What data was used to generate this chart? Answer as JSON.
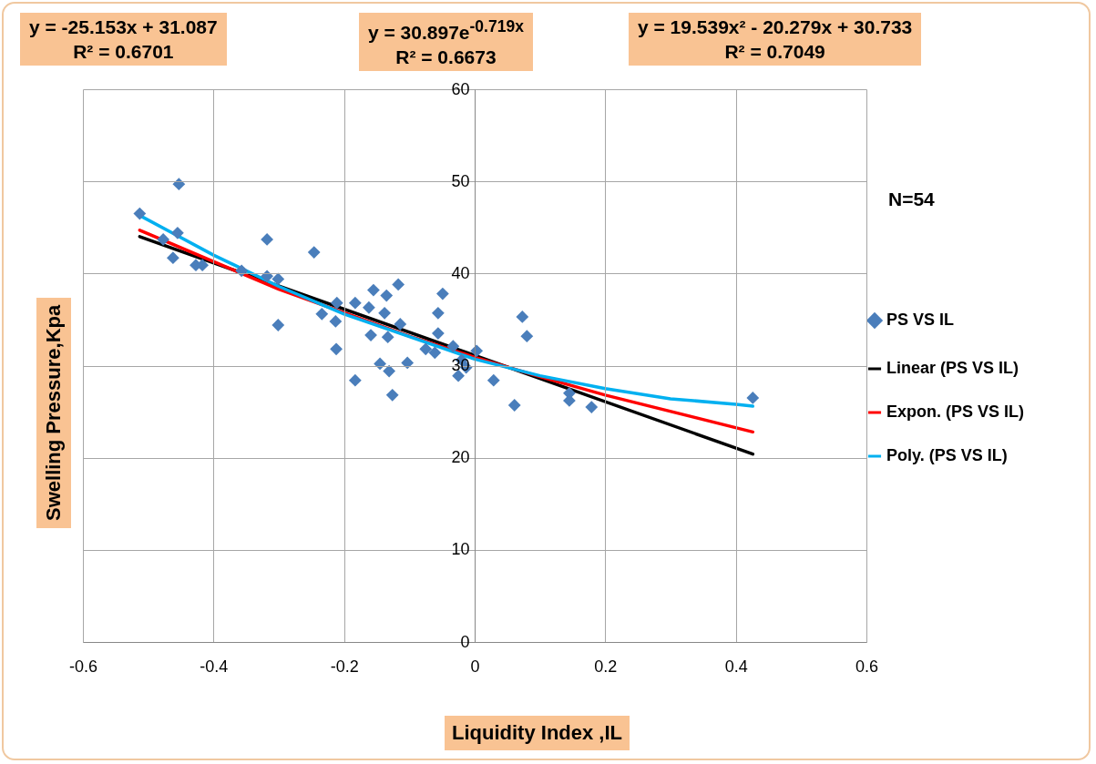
{
  "chart_data": {
    "type": "scatter",
    "xlabel": "Liquidity Index ,IL",
    "ylabel": "Swelling  Pressure,Kpa",
    "annotations": [
      "y = -25.153x + 31.087\nR² = 0.6701",
      "y = 30.897e$^{-0.719x}$\nR² = 0.6673",
      "y = 19.539x² - 20.279x + 30.733\nR² = 0.7049",
      "N=54"
    ],
    "xlim": [
      -0.6,
      0.6
    ],
    "xticks": [
      -0.6,
      -0.4,
      -0.2,
      0,
      0.2,
      0.4,
      0.6
    ],
    "ylim": [
      0,
      60
    ],
    "yticks": [
      0,
      10,
      20,
      30,
      40,
      50,
      60
    ],
    "grid": true,
    "legend": "right",
    "series": [
      {
        "name": "PS VS IL",
        "marker": "diamond",
        "color": "#4a7ebb",
        "x": [
          -0.513,
          -0.453,
          -0.455,
          -0.477,
          -0.462,
          -0.427,
          -0.417,
          -0.357,
          -0.318,
          -0.318,
          -0.301,
          -0.301,
          -0.246,
          -0.234,
          -0.211,
          -0.213,
          -0.183,
          -0.212,
          -0.155,
          -0.135,
          -0.117,
          -0.162,
          -0.138,
          -0.159,
          -0.133,
          -0.114,
          -0.145,
          -0.131,
          -0.183,
          -0.126,
          -0.103,
          -0.049,
          -0.056,
          -0.056,
          -0.075,
          -0.061,
          -0.033,
          -0.02,
          -0.013,
          -0.025,
          0.003,
          0.029,
          0.061,
          0.073,
          0.08,
          0.145,
          0.145,
          0.179,
          0.426
        ],
        "values": [
          46.5,
          49.7,
          44.4,
          43.7,
          41.7,
          40.9,
          40.9,
          40.3,
          43.7,
          39.7,
          39.4,
          34.4,
          42.3,
          35.6,
          36.8,
          34.8,
          36.8,
          31.8,
          38.2,
          37.6,
          38.8,
          36.3,
          35.7,
          33.3,
          33.1,
          34.5,
          30.2,
          29.4,
          28.4,
          26.8,
          30.3,
          37.8,
          35.7,
          33.5,
          31.8,
          31.4,
          32.1,
          30.6,
          29.8,
          28.9,
          31.6,
          28.4,
          25.7,
          35.3,
          33.2,
          27.0,
          26.2,
          25.5,
          26.5
        ]
      },
      {
        "name": "Linear (PS VS IL)",
        "type": "line",
        "color": "#000000",
        "x": [
          -0.513,
          0.426
        ],
        "values": [
          44.0,
          20.4
        ]
      },
      {
        "name": "Expon. (PS VS IL)",
        "type": "line",
        "color": "#ff0000",
        "x": [
          -0.513,
          -0.3,
          -0.1,
          0,
          0.1,
          0.2,
          0.426
        ],
        "values": [
          44.7,
          38.3,
          33.2,
          30.9,
          28.8,
          26.8,
          22.8
        ]
      },
      {
        "name": "Poly. (PS VS IL)",
        "type": "line",
        "color": "#00b0f0",
        "x": [
          -0.513,
          -0.4,
          -0.3,
          -0.2,
          0,
          0.1,
          0.2,
          0.3,
          0.4,
          0.426
        ],
        "values": [
          46.3,
          42.0,
          38.6,
          35.6,
          30.7,
          28.9,
          27.5,
          26.4,
          25.8,
          25.6
        ]
      }
    ]
  }
}
